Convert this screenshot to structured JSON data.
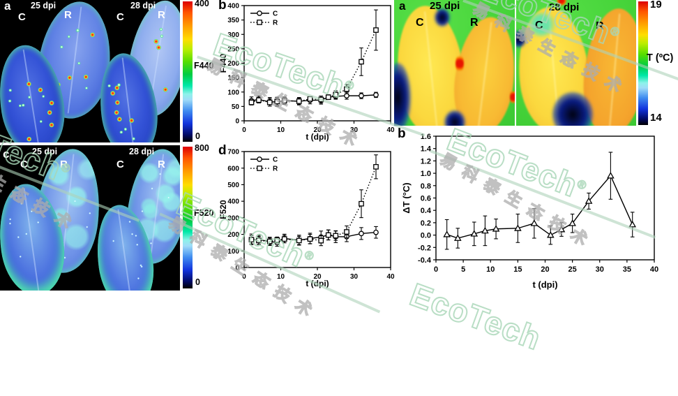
{
  "watermark": {
    "brand": "EcoTech",
    "reg": "®",
    "cjk": "易科泰生态技术",
    "brand_color": "#a8d6b6",
    "cjk_color": "#acacac"
  },
  "colormap": [
    "#dd0000",
    "#ff9900",
    "#ffdd00",
    "#55dd00",
    "#00e8a8",
    "#9fdcf8",
    "#1133dd",
    "#000000"
  ],
  "left_figure": {
    "panel_a": {
      "label": "a",
      "time_points": [
        "25 dpi",
        "28 dpi"
      ],
      "leaf_labels": [
        "C",
        "R",
        "C",
        "R"
      ],
      "colorbar": {
        "max": "400",
        "title": "F440",
        "min": "0"
      }
    },
    "panel_b": {
      "label": "b"
    },
    "panel_c": {
      "label": "c",
      "time_points": [
        "25 dpi",
        "28 dpi"
      ],
      "leaf_labels": [
        "C",
        "R",
        "C",
        "R"
      ],
      "colorbar": {
        "max": "800",
        "title": "F520",
        "min": "0"
      }
    },
    "panel_d": {
      "label": "d"
    }
  },
  "right_figure": {
    "panel_a": {
      "label": "a",
      "time_points": [
        "25 dpi",
        "28 dpi"
      ],
      "leaf_labels": [
        "C",
        "R",
        "C",
        "R"
      ],
      "colorbar": {
        "max": "19",
        "title": "T (ºC)",
        "min": "14"
      }
    },
    "panel_b": {
      "label": "b"
    }
  },
  "chart_data": [
    {
      "id": "F440_vs_time",
      "type": "line",
      "panel": "b",
      "xlabel": "t (dpi)",
      "ylabel": "F440",
      "xlim": [
        0,
        40
      ],
      "xtick": 10,
      "ylim": [
        0,
        400
      ],
      "ytick": 50,
      "legend_position": "top-left",
      "x": [
        2,
        4,
        7,
        9,
        11,
        15,
        18,
        21,
        23,
        25,
        28,
        32,
        36
      ],
      "series": [
        {
          "name": "C",
          "marker": "circle",
          "line": "solid",
          "values": [
            70,
            74,
            66,
            66,
            70,
            68,
            71,
            72,
            82,
            85,
            87,
            87,
            90
          ],
          "errors": [
            13,
            12,
            15,
            16,
            13,
            13,
            12,
            14,
            8,
            10,
            12,
            10,
            9
          ]
        },
        {
          "name": "R",
          "marker": "square",
          "line": "dotted",
          "values": [
            64,
            72,
            64,
            67,
            70,
            68,
            76,
            74,
            82,
            91,
            110,
            205,
            315
          ],
          "errors": [
            9,
            10,
            13,
            13,
            11,
            11,
            8,
            12,
            8,
            13,
            16,
            48,
            70
          ]
        }
      ]
    },
    {
      "id": "F520_vs_time",
      "type": "line",
      "panel": "d",
      "xlabel": "t (dpi)",
      "ylabel": "F520",
      "xlim": [
        0,
        40
      ],
      "xtick": 10,
      "ylim": [
        0,
        700
      ],
      "ytick": 100,
      "legend_position": "top-left",
      "x": [
        2,
        4,
        7,
        9,
        11,
        15,
        18,
        21,
        23,
        25,
        28,
        32,
        36
      ],
      "series": [
        {
          "name": "C",
          "marker": "circle",
          "line": "solid",
          "values": [
            170,
            167,
            158,
            150,
            175,
            165,
            175,
            184,
            197,
            186,
            186,
            205,
            212
          ],
          "errors": [
            32,
            27,
            25,
            22,
            26,
            30,
            32,
            36,
            30,
            36,
            30,
            36,
            35
          ]
        },
        {
          "name": "R",
          "marker": "square",
          "line": "dotted",
          "values": [
            168,
            163,
            158,
            166,
            172,
            163,
            172,
            162,
            196,
            192,
            215,
            385,
            608
          ],
          "errors": [
            25,
            24,
            20,
            18,
            22,
            25,
            28,
            30,
            30,
            28,
            36,
            84,
            72
          ]
        }
      ]
    },
    {
      "id": "deltaT_vs_time",
      "type": "line",
      "panel": "b",
      "xlabel": "t (dpi)",
      "ylabel": "ΔT (°C)",
      "xlim": [
        0,
        40
      ],
      "xtick": 5,
      "ylim": [
        -0.4,
        1.6
      ],
      "ytick": 0.2,
      "legend_position": null,
      "x": [
        2,
        4,
        7,
        9,
        11,
        15,
        18,
        21,
        23,
        25,
        28,
        32,
        36
      ],
      "series": [
        {
          "name": "ΔT",
          "marker": "triangle",
          "line": "solid",
          "values": [
            0.01,
            -0.05,
            0.02,
            0.07,
            0.1,
            0.11,
            0.19,
            0.0,
            0.09,
            0.19,
            0.55,
            0.96,
            0.17
          ],
          "errors": [
            0.24,
            0.16,
            0.19,
            0.24,
            0.16,
            0.23,
            0.24,
            0.15,
            0.11,
            0.15,
            0.13,
            0.38,
            0.2
          ]
        }
      ]
    }
  ]
}
